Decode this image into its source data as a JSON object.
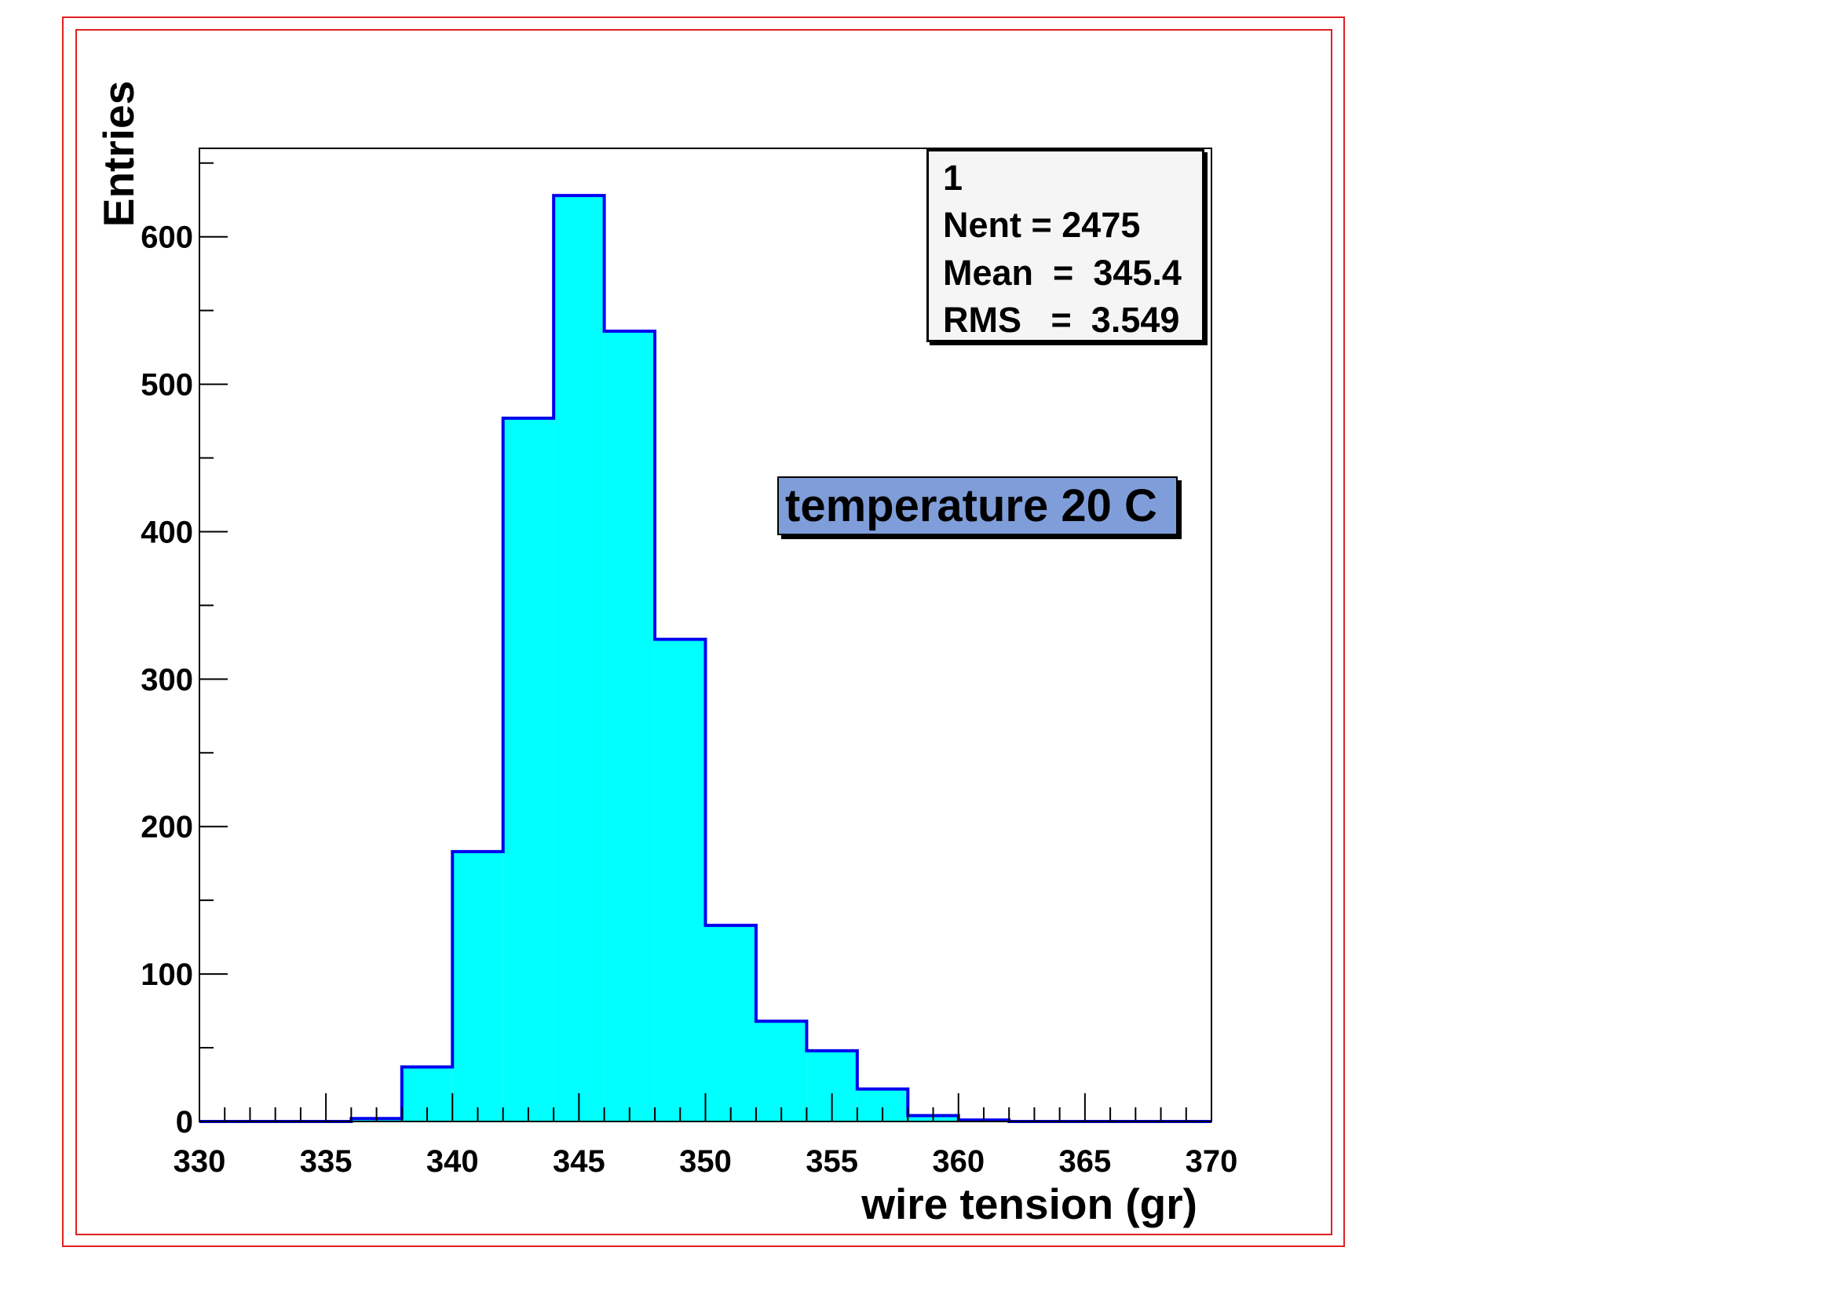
{
  "chart_data": {
    "type": "bar",
    "histogram": true,
    "xlabel": "wire tension (gr)",
    "ylabel": "Entries",
    "xlim": [
      330,
      370
    ],
    "ylim": [
      0,
      660
    ],
    "xticks": [
      330,
      335,
      340,
      345,
      350,
      355,
      360,
      365,
      370
    ],
    "yticks": [
      0,
      100,
      200,
      300,
      400,
      500,
      600
    ],
    "bin_edges": [
      330,
      332,
      334,
      336,
      338,
      340,
      342,
      344,
      346,
      348,
      350,
      352,
      354,
      356,
      358,
      360,
      362,
      364,
      366,
      368,
      370
    ],
    "values": [
      0,
      0,
      0,
      2,
      37,
      183,
      477,
      628,
      536,
      327,
      133,
      68,
      48,
      22,
      4,
      1,
      0,
      0,
      0,
      0
    ],
    "grid": false,
    "fill_color": "#00ffff",
    "line_color": "#0000ee"
  },
  "stats": {
    "title": "1",
    "nent": "Nent = 2475",
    "mean": "Mean  =  345.4",
    "rms": "RMS   =  3.549"
  },
  "annotation": "temperature 20 C",
  "colors": {
    "frame": "#e02020",
    "label_box": "#7f9ed9",
    "stats_box": "#f5f5f5"
  }
}
